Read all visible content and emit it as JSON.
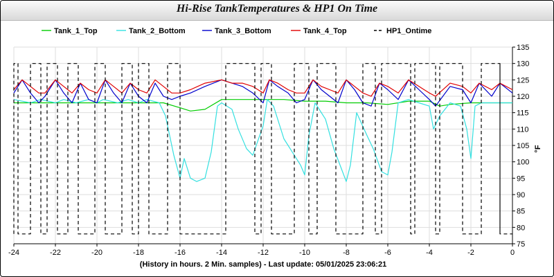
{
  "chart_data": {
    "type": "line",
    "title": "Hi-Rise TankTemperatures & HP1 On Time",
    "xlabel": "(History in hours. 2 Min. samples) - Last update: 05/01/2025 23:06:21",
    "ylabel": "°F",
    "xlim": [
      -24,
      0
    ],
    "ylim": [
      75,
      135
    ],
    "x_ticks": [
      "-24",
      "-22",
      "-20",
      "-18",
      "-16",
      "-14",
      "-12",
      "-10",
      "-8",
      "-6",
      "-4",
      "-2",
      "0"
    ],
    "y_ticks": [
      "75",
      "80",
      "85",
      "90",
      "95",
      "100",
      "105",
      "110",
      "115",
      "120",
      "125",
      "130",
      "135"
    ],
    "grid": true,
    "legend": "top",
    "series": [
      {
        "name": "Tank_1_Top",
        "color": "#00cc00",
        "style": "solid",
        "x": [
          -24,
          -22,
          -20,
          -18,
          -16.8,
          -16,
          -15.5,
          -14.8,
          -14,
          -13,
          -12,
          -11,
          -10,
          -9,
          -8,
          -7,
          -6,
          -5,
          -4,
          -3.5,
          -3,
          -2,
          -1,
          0
        ],
        "y": [
          118,
          118,
          118,
          118,
          118,
          116.5,
          115.5,
          116,
          119,
          119,
          119,
          119,
          118.5,
          118.5,
          118,
          118,
          117.5,
          118.5,
          118.5,
          117,
          117.5,
          118,
          118,
          118
        ]
      },
      {
        "name": "Tank_2_Bottom",
        "color": "#33e0e0",
        "style": "solid",
        "x": [
          -24,
          -23.2,
          -22.7,
          -22,
          -21.6,
          -21,
          -20.4,
          -20,
          -19.7,
          -19,
          -18.5,
          -18,
          -17.6,
          -17,
          -16.7,
          -16.3,
          -16,
          -15.8,
          -15.5,
          -15.2,
          -14.8,
          -14.5,
          -14.2,
          -14,
          -13.5,
          -13.2,
          -12.8,
          -12.5,
          -12,
          -11.8,
          -11.5,
          -11,
          -10.5,
          -10.2,
          -10,
          -9.8,
          -9.5,
          -9,
          -8.6,
          -8.3,
          -8,
          -7.8,
          -7.5,
          -7,
          -6.7,
          -6.3,
          -6,
          -5.8,
          -5.5,
          -5,
          -4.5,
          -4,
          -3.8,
          -3.5,
          -3,
          -2.5,
          -2.2,
          -2,
          -1.8,
          -1.5,
          -1,
          -0.5,
          0
        ],
        "y": [
          119,
          118,
          119,
          118,
          119,
          118,
          119,
          118,
          119,
          118,
          119,
          118,
          119,
          118,
          114,
          102,
          95,
          101,
          95,
          94,
          95,
          103,
          117,
          118,
          116,
          110,
          104,
          102,
          111,
          119,
          117,
          107,
          102,
          99,
          96,
          108,
          118,
          113,
          104,
          99,
          94,
          99,
          115,
          108,
          104,
          97,
          96,
          103,
          118,
          119,
          118,
          117,
          110,
          114,
          118,
          117,
          110,
          101,
          117,
          118,
          118,
          118,
          118
        ]
      },
      {
        "name": "Tank_3_Bottom",
        "color": "#0000cc",
        "style": "solid",
        "x": [
          -24,
          -23.6,
          -23.2,
          -22.8,
          -22.5,
          -22,
          -21.6,
          -21.2,
          -20.8,
          -20.4,
          -20,
          -19.6,
          -19.2,
          -18.8,
          -18.4,
          -18,
          -17.6,
          -17.2,
          -16.8,
          -16.4,
          -16,
          -15.5,
          -14.8,
          -14,
          -13.5,
          -13,
          -12.5,
          -12,
          -11.7,
          -11.3,
          -10.8,
          -10.4,
          -10,
          -9.6,
          -9.2,
          -8.8,
          -8.4,
          -8,
          -7.6,
          -7.2,
          -6.8,
          -6.4,
          -6,
          -5.5,
          -5,
          -4.5,
          -4,
          -3.7,
          -3,
          -2.4,
          -2,
          -1.6,
          -1,
          -0.6,
          0
        ],
        "y": [
          121,
          125,
          121,
          118,
          120,
          125,
          121,
          118,
          124,
          119,
          118,
          125,
          121,
          118,
          124,
          120,
          118,
          124,
          120,
          119,
          120,
          121,
          123,
          125,
          124,
          123,
          121,
          118,
          125,
          123,
          121,
          118,
          119,
          125,
          122,
          120,
          118,
          125,
          122,
          118,
          117,
          124,
          122,
          119,
          125,
          122,
          119,
          117,
          123,
          122,
          118,
          124,
          120,
          124,
          121
        ]
      },
      {
        "name": "Tank_4_Top",
        "color": "#e00000",
        "style": "solid",
        "x": [
          -24,
          -23.6,
          -23.2,
          -22.8,
          -22.5,
          -22,
          -21.6,
          -21.2,
          -20.8,
          -20.4,
          -20,
          -19.6,
          -19.2,
          -18.8,
          -18.4,
          -18,
          -17.6,
          -17.2,
          -16.8,
          -16.4,
          -16,
          -15.5,
          -14.8,
          -14,
          -13.5,
          -13,
          -12.5,
          -12,
          -11.7,
          -11.3,
          -10.8,
          -10.4,
          -10,
          -9.6,
          -9.2,
          -8.8,
          -8.4,
          -8,
          -7.6,
          -7.2,
          -6.8,
          -6.4,
          -6,
          -5.5,
          -5,
          -4.5,
          -4,
          -3.7,
          -3,
          -2.4,
          -2,
          -1.6,
          -1,
          -0.6,
          0
        ],
        "y": [
          122,
          125,
          123,
          121,
          121,
          125,
          123,
          121,
          124,
          122,
          121,
          125,
          123,
          121,
          124,
          122,
          121,
          125,
          123,
          121,
          121,
          122,
          124,
          125,
          124,
          124,
          123,
          121,
          125,
          124,
          122,
          121,
          121,
          125,
          123,
          122,
          121,
          125,
          123,
          121,
          120,
          124,
          123,
          121,
          125,
          123,
          121,
          120,
          124,
          123,
          121,
          124,
          122,
          124,
          122
        ]
      },
      {
        "name": "HP1_Ontime",
        "color": "#000000",
        "style": "dashed",
        "intervals": [
          [
            -24,
            -23.8
          ],
          [
            -23.2,
            -22.7
          ],
          [
            -22.4,
            -21.9
          ],
          [
            -21.4,
            -20.9
          ],
          [
            -20.1,
            -19.6
          ],
          [
            -18.8,
            -18.3
          ],
          [
            -18,
            -17.5
          ],
          [
            -16.6,
            -16
          ],
          [
            -13.8,
            -12.4
          ],
          [
            -12.1,
            -11.6
          ],
          [
            -10.5,
            -9.8
          ],
          [
            -9.4,
            -8.5
          ],
          [
            -7.2,
            -6.6
          ],
          [
            -6.3,
            -4.9
          ],
          [
            -4.7,
            -3.7
          ],
          [
            -3.5,
            -2.4
          ],
          [
            -1.5,
            -0.6
          ],
          [
            -0.6,
            -0.6
          ]
        ],
        "on_value": 130,
        "off_value": 78
      }
    ]
  }
}
